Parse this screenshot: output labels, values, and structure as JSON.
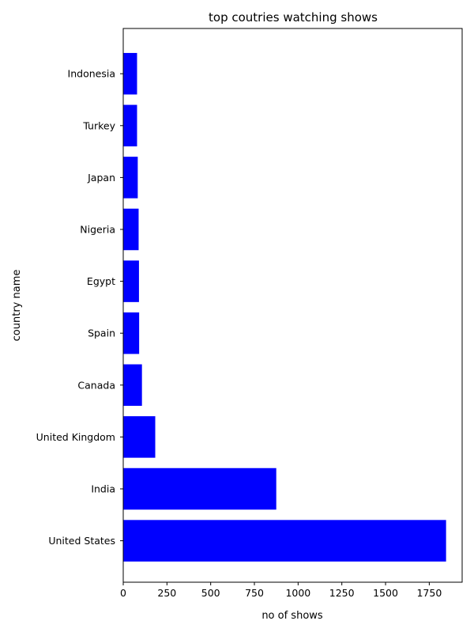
{
  "chart_data": {
    "type": "bar",
    "orientation": "horizontal",
    "title": "top coutries watching shows",
    "xlabel": "no of shows",
    "ylabel": "country name",
    "categories": [
      "United States",
      "India",
      "United Kingdom",
      "Canada",
      "Spain",
      "Egypt",
      "Nigeria",
      "Japan",
      "Turkey",
      "Indonesia"
    ],
    "values": [
      1846,
      875,
      183,
      107,
      91,
      90,
      88,
      83,
      79,
      79
    ],
    "xlim": [
      0,
      1938
    ],
    "xticks": [
      0,
      250,
      500,
      750,
      1000,
      1250,
      1500,
      1750
    ],
    "bar_color": "#0000ff",
    "grid": false,
    "legend": "none"
  }
}
